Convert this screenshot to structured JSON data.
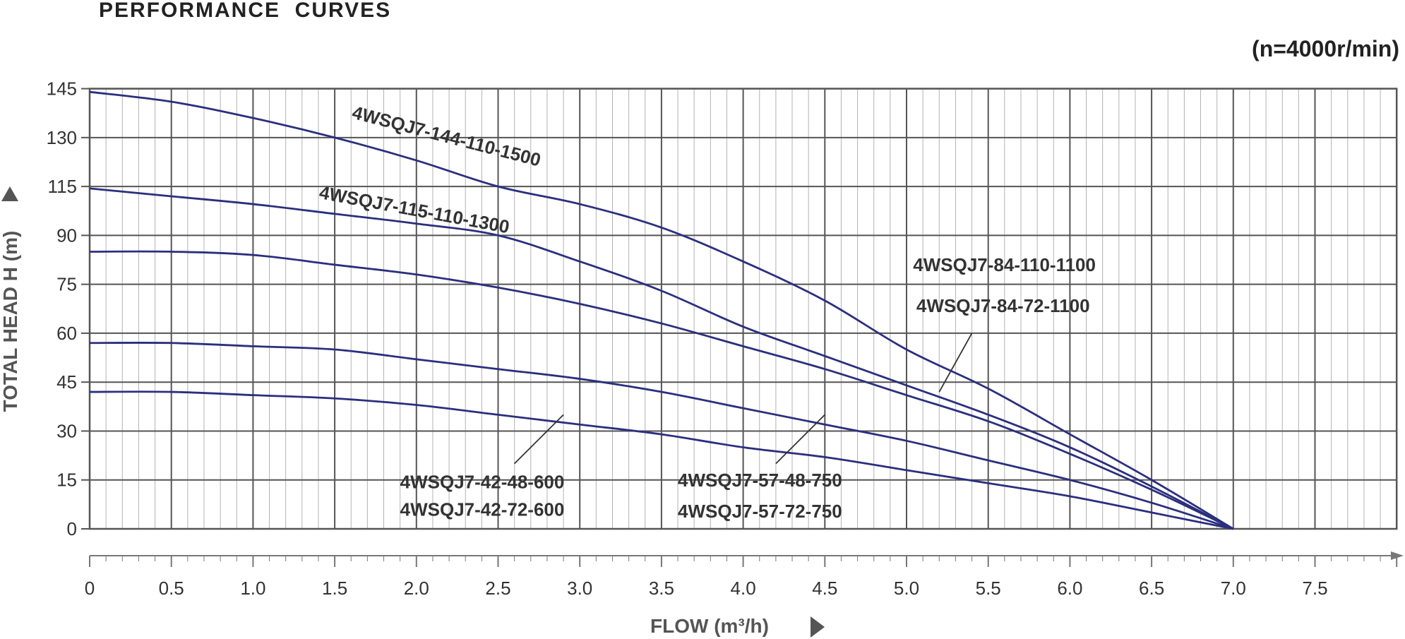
{
  "header": {
    "title": "PERFORMANCE  CURVES",
    "speed": "(n=4000r/min)"
  },
  "colors": {
    "curve": "#2b2f7e",
    "major_grid": "#555555",
    "minor_grid": "#b3b3b3",
    "text": "#333333"
  },
  "chart_data": {
    "type": "line",
    "title": "PERFORMANCE  CURVES",
    "subtitle": "(n=4000r/min)",
    "xlabel": "FLOW (m³/h)",
    "ylabel": "TOTAL HEAD H (m)",
    "xlim": [
      0,
      8
    ],
    "x_ticks": [
      "0",
      "0.5",
      "1.0",
      "1.5",
      "2.0",
      "2.5",
      "3.0",
      "3.5",
      "4.0",
      "4.5",
      "5.0",
      "5.5",
      "6.0",
      "6.5",
      "7.0",
      "7.5"
    ],
    "y_ticks": [
      "0",
      "15",
      "30",
      "45",
      "60",
      "75",
      "90",
      "115",
      "130",
      "145"
    ],
    "grid": true,
    "series": [
      {
        "name": "4WSQJ7-144-110-1500",
        "x": [
          0,
          0.5,
          1.0,
          1.5,
          2.0,
          2.5,
          3.0,
          3.5,
          4.0,
          4.5,
          5.0,
          5.5,
          6.0,
          6.5,
          7.0
        ],
        "y": [
          144,
          141,
          136,
          130,
          123,
          115,
          106,
          94,
          82,
          70,
          55,
          43,
          29,
          15,
          0
        ]
      },
      {
        "name": "4WSQJ7-115-110-1300",
        "x": [
          0,
          0.5,
          1.0,
          1.5,
          2.0,
          2.5,
          3.0,
          3.5,
          4.0,
          4.5,
          5.0,
          5.5,
          6.0,
          6.5,
          7.0
        ],
        "y": [
          114,
          110,
          106,
          101,
          96,
          90,
          82,
          73,
          62,
          53,
          44,
          35,
          25,
          13,
          0
        ]
      },
      {
        "name": "4WSQJ7-84-110-1100",
        "x": [
          0,
          0.5,
          1.0,
          1.5,
          2.0,
          2.5,
          3.0,
          3.5,
          4.0,
          4.5,
          5.0,
          5.5,
          6.0,
          6.5,
          7.0
        ],
        "y": [
          85,
          85,
          84,
          81,
          78,
          74,
          69,
          63,
          56,
          49,
          41,
          33,
          23,
          12,
          0
        ]
      },
      {
        "name": "4WSQJ7-57-48-750",
        "x": [
          0,
          0.5,
          1.0,
          1.5,
          2.0,
          2.5,
          3.0,
          3.5,
          4.0,
          4.5,
          5.0,
          5.5,
          6.0,
          6.5,
          7.0
        ],
        "y": [
          57,
          57,
          56,
          55,
          52,
          49,
          46,
          42,
          37,
          32,
          27,
          21,
          15,
          8,
          0
        ]
      },
      {
        "name": "4WSQJ7-42-48-600",
        "x": [
          0,
          0.5,
          1.0,
          1.5,
          2.0,
          2.5,
          3.0,
          3.5,
          4.0,
          4.5,
          5.0,
          5.5,
          6.0,
          6.5,
          7.0
        ],
        "y": [
          42,
          42,
          41,
          40,
          38,
          35,
          32,
          29,
          25,
          22,
          18,
          14,
          10,
          5,
          0
        ]
      }
    ],
    "labels": [
      {
        "text": "4WSQJ7-144-110-1500"
      },
      {
        "text": "4WSQJ7-115-110-1300"
      },
      {
        "text": "4WSQJ7-84-110-1100"
      },
      {
        "text": "4WSQJ7-84-72-1100"
      },
      {
        "text": "4WSQJ7-57-48-750"
      },
      {
        "text": "4WSQJ7-57-72-750"
      },
      {
        "text": "4WSQJ7-42-48-600"
      },
      {
        "text": "4WSQJ7-42-72-600"
      }
    ]
  }
}
